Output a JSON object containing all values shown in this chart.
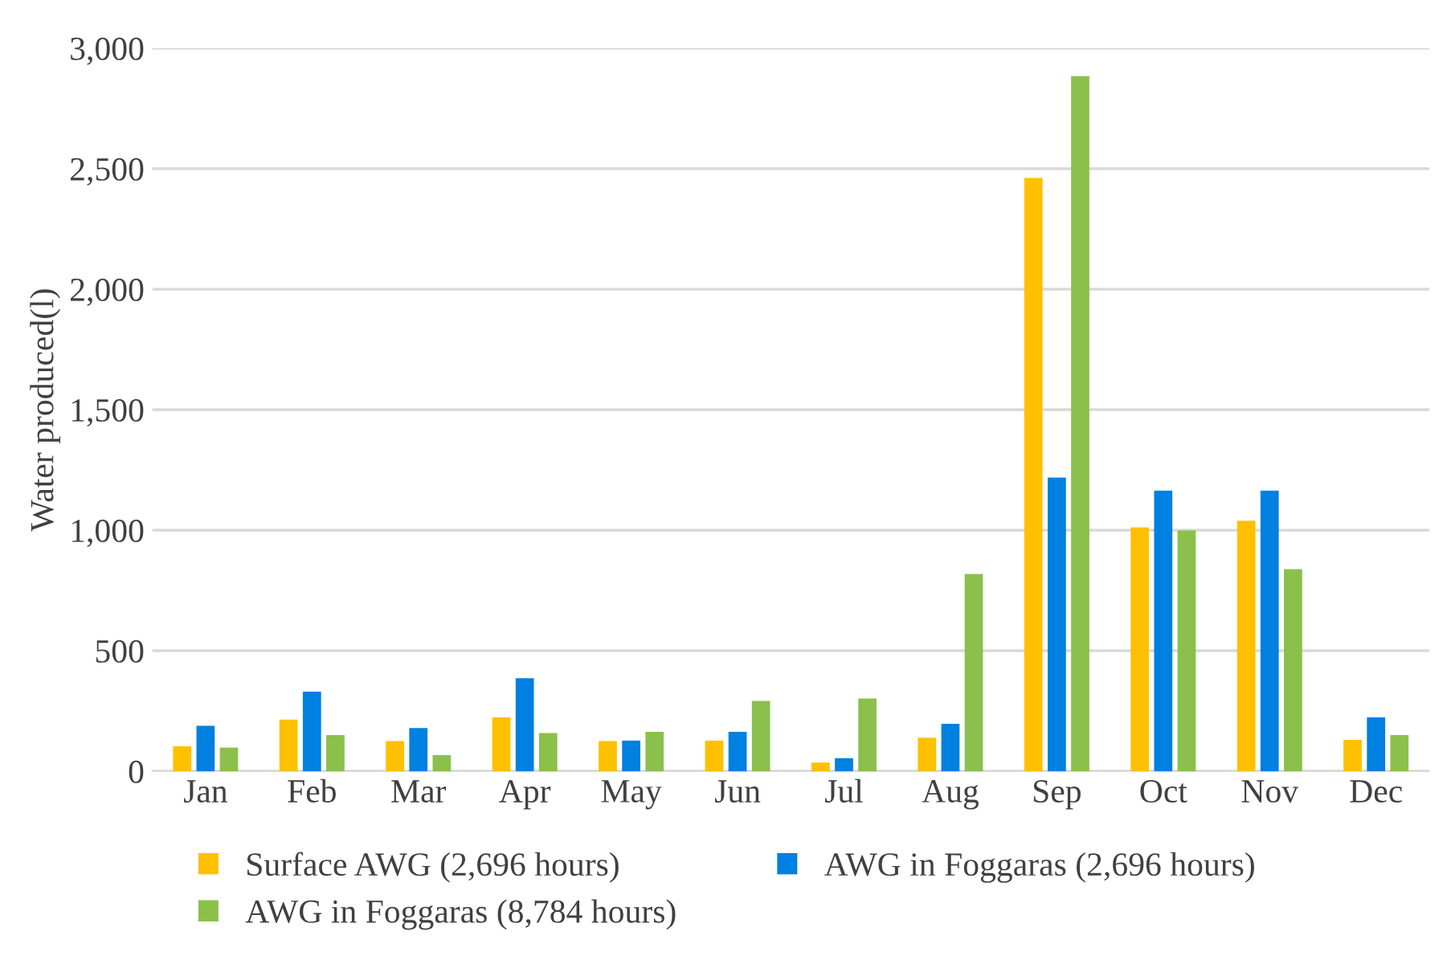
{
  "chart_data": {
    "type": "bar",
    "ylabel": "Water produced(l)",
    "categories": [
      "Jan",
      "Feb",
      "Mar",
      "Apr",
      "May",
      "Jun",
      "Jul",
      "Aug",
      "Sep",
      "Oct",
      "Nov",
      "Dec"
    ],
    "series": [
      {
        "name": "Surface AWG (2,696 hours)",
        "color": "#ffc000",
        "values": [
          103,
          214,
          125,
          223,
          125,
          127,
          36,
          139,
          2462,
          1012,
          1039,
          130
        ]
      },
      {
        "name": "AWG in Foggaras (2,696 hours)",
        "color": "#0080e0",
        "values": [
          188,
          330,
          179,
          386,
          127,
          163,
          54,
          197,
          1218,
          1164,
          1164,
          223
        ]
      },
      {
        "name": "AWG in Foggaras (8,784 hours)",
        "color": "#8bc04c",
        "values": [
          98,
          150,
          67,
          158,
          163,
          292,
          302,
          818,
          2884,
          999,
          838,
          150
        ]
      }
    ],
    "ylim": [
      0,
      3000
    ],
    "yticks": [
      {
        "value": 0,
        "label": "0"
      },
      {
        "value": 500,
        "label": "500"
      },
      {
        "value": 1000,
        "label": "1,000"
      },
      {
        "value": 1500,
        "label": "1,500"
      },
      {
        "value": 2000,
        "label": "2,000"
      },
      {
        "value": 2500,
        "label": "2,500"
      },
      {
        "value": 3000,
        "label": "3,000"
      }
    ],
    "grid": "y",
    "legend": "bottom"
  }
}
